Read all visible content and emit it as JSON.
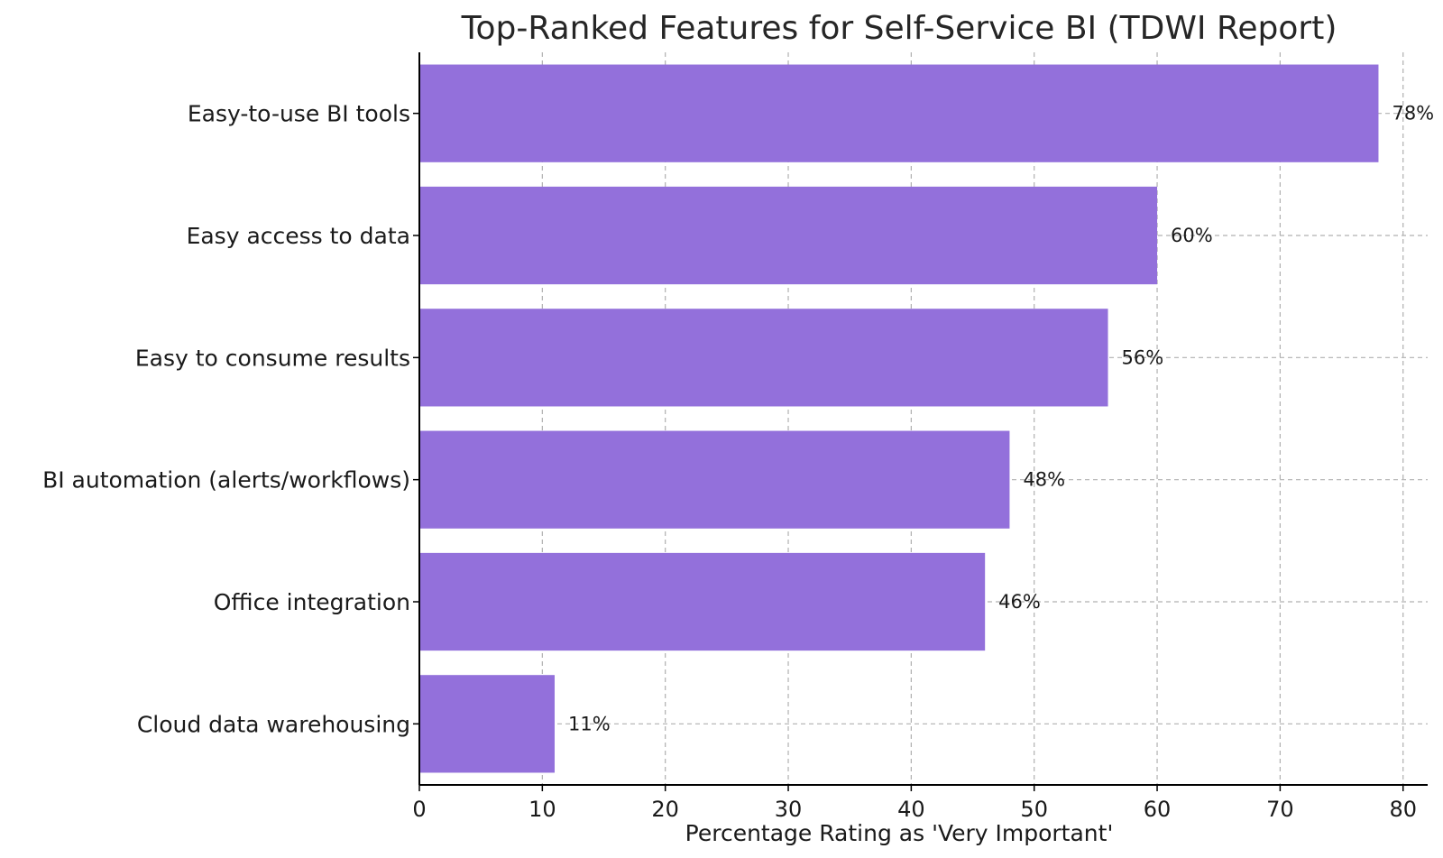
{
  "chart_data": {
    "type": "bar",
    "orientation": "horizontal",
    "title": "Top-Ranked Features for Self-Service BI (TDWI Report)",
    "xlabel": "Percentage Rating as 'Very Important'",
    "ylabel": "",
    "categories": [
      "Easy-to-use BI tools",
      "Easy access to data",
      "Easy to consume results",
      "BI automation (alerts/workflows)",
      "Office integration",
      "Cloud data warehousing"
    ],
    "values": [
      78,
      60,
      56,
      48,
      46,
      11
    ],
    "data_labels": [
      "78%",
      "60%",
      "56%",
      "48%",
      "46%",
      "11%"
    ],
    "xlim": [
      0,
      82
    ],
    "xticks": [
      0,
      10,
      20,
      30,
      40,
      50,
      60,
      70,
      80
    ],
    "xtick_labels": [
      "0",
      "10",
      "20",
      "30",
      "40",
      "50",
      "60",
      "70",
      "80"
    ],
    "grid": true,
    "grid_style": "dashed",
    "bar_color": "#9370DB"
  }
}
